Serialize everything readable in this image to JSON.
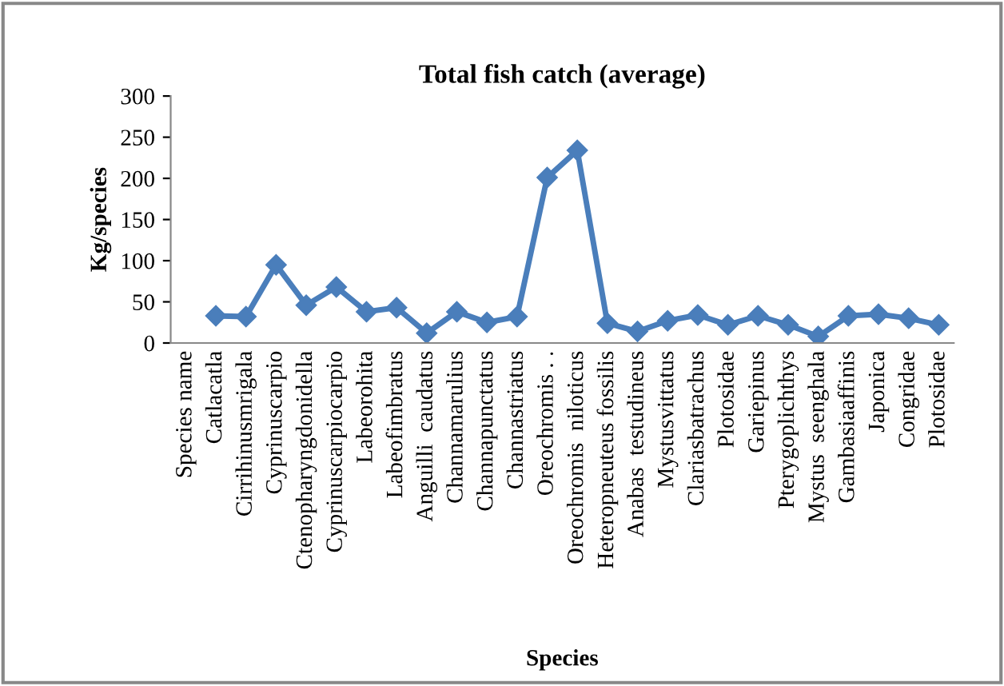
{
  "chart_data": {
    "type": "line",
    "title": "Total fish catch (average)",
    "xlabel": "Species",
    "ylabel": "Kg/species",
    "categories": [
      "Species name",
      "Catlacatla",
      "Cirrihinusmrigala",
      "Cyprinuscarpio",
      "Ctenopharyngdonidella",
      "Cyprinuscarpiocarpio",
      "Labeorohita",
      "Labeofimbratus",
      "Anguilli  caudatus",
      "Channamarulius",
      "Channapunctatus",
      "Channastriatus",
      "Oreochromis . .",
      "Oreochromis  niloticus",
      "Heteropneuteus fossilis",
      "Anabas  testudineus",
      "Mystusvittatus",
      "Clariasbatrachus",
      "Plotosidae",
      "Gariepinus",
      "Pterygoplichthys",
      "Mystus  seenghala",
      "Gambasiaaffinis",
      "Japonica",
      "Congridae",
      "Plotosidae"
    ],
    "series": [
      {
        "color": "#4a7ebb",
        "values": [
          null,
          33,
          32,
          95,
          46,
          68,
          38,
          43,
          12,
          38,
          25,
          32,
          201,
          234,
          24,
          14,
          27,
          34,
          22,
          33,
          22,
          8,
          33,
          35,
          30,
          22
        ]
      }
    ],
    "ylim": [
      0,
      300
    ],
    "yticks": [
      0,
      50,
      100,
      150,
      200,
      250,
      300
    ],
    "grid": false,
    "legend": false,
    "marker": "diamond",
    "line_style": "solid"
  }
}
